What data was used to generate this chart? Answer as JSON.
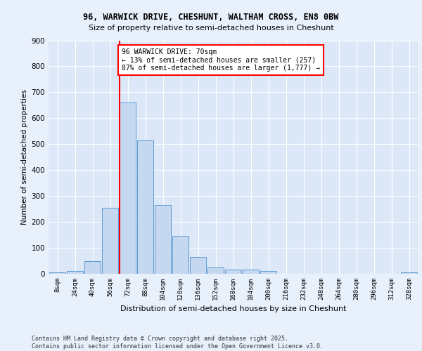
{
  "title_line1": "96, WARWICK DRIVE, CHESHUNT, WALTHAM CROSS, EN8 0BW",
  "title_line2": "Size of property relative to semi-detached houses in Cheshunt",
  "xlabel": "Distribution of semi-detached houses by size in Cheshunt",
  "ylabel": "Number of semi-detached properties",
  "footer": "Contains HM Land Registry data © Crown copyright and database right 2025.\nContains public sector information licensed under the Open Government Licence v3.0.",
  "bin_labels": [
    "8sqm",
    "24sqm",
    "40sqm",
    "56sqm",
    "72sqm",
    "88sqm",
    "104sqm",
    "120sqm",
    "136sqm",
    "152sqm",
    "168sqm",
    "184sqm",
    "200sqm",
    "216sqm",
    "232sqm",
    "248sqm",
    "264sqm",
    "280sqm",
    "296sqm",
    "312sqm",
    "328sqm"
  ],
  "bar_values": [
    5,
    10,
    50,
    255,
    660,
    515,
    265,
    145,
    65,
    25,
    15,
    15,
    10,
    0,
    0,
    0,
    0,
    0,
    0,
    0,
    5
  ],
  "bar_color": "#c5d8f0",
  "bar_edge_color": "#5b9bd5",
  "annotation_text": "96 WARWICK DRIVE: 70sqm\n← 13% of semi-detached houses are smaller (257)\n87% of semi-detached houses are larger (1,777) →",
  "annotation_box_color": "white",
  "annotation_box_edge": "red",
  "vline_color": "red",
  "vline_pos": 3.55,
  "bg_color": "#e8f0fc",
  "plot_bg_color": "#dce8f8",
  "grid_color": "white",
  "ylim": [
    0,
    900
  ],
  "yticks": [
    0,
    100,
    200,
    300,
    400,
    500,
    600,
    700,
    800,
    900
  ]
}
